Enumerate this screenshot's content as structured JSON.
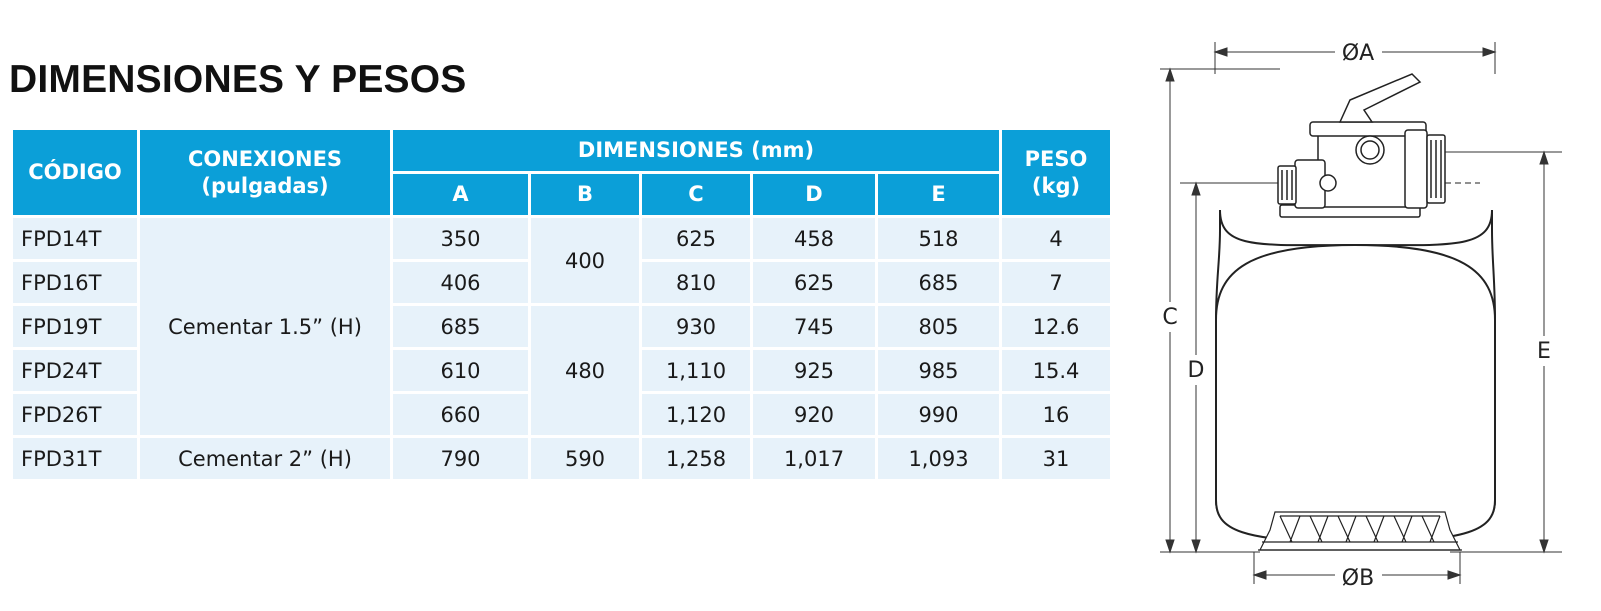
{
  "title": "DIMENSIONES Y PESOS",
  "table": {
    "headers": {
      "codigo": "CÓDIGO",
      "conexiones_line1": "CONEXIONES",
      "conexiones_line2": "(pulgadas)",
      "dimensiones": "DIMENSIONES (mm)",
      "peso_line1": "PESO",
      "peso_line2": "(kg)",
      "sub": [
        "A",
        "B",
        "C",
        "D",
        "E"
      ]
    },
    "rows": [
      {
        "code": "FPD14T",
        "A": "350",
        "C": "625",
        "D": "458",
        "E": "518",
        "peso": "4"
      },
      {
        "code": "FPD16T",
        "A": "406",
        "C": "810",
        "D": "625",
        "E": "685",
        "peso": "7"
      },
      {
        "code": "FPD19T",
        "A": "685",
        "C": "930",
        "D": "745",
        "E": "805",
        "peso": "12.6"
      },
      {
        "code": "FPD24T",
        "A": "610",
        "C": "1,110",
        "D": "925",
        "E": "985",
        "peso": "15.4"
      },
      {
        "code": "FPD26T",
        "A": "660",
        "C": "1,120",
        "D": "920",
        "E": "990",
        "peso": "16"
      },
      {
        "code": "FPD31T",
        "A": "790",
        "C": "1,258",
        "D": "1,017",
        "E": "1,093",
        "peso": "31"
      }
    ],
    "conexiones_group1": "Cementar 1.5” (H)",
    "conexiones_group2": "Cementar 2” (H)",
    "b_group1": "400",
    "b_group2": "480",
    "b_group3": "590"
  },
  "diagram": {
    "label_a": "ØA",
    "label_b": "ØB",
    "label_c": "C",
    "label_d": "D",
    "label_e": "E"
  },
  "colors": {
    "header_blue": "#0b9fd8",
    "row_shade": "#e7f2fa"
  }
}
